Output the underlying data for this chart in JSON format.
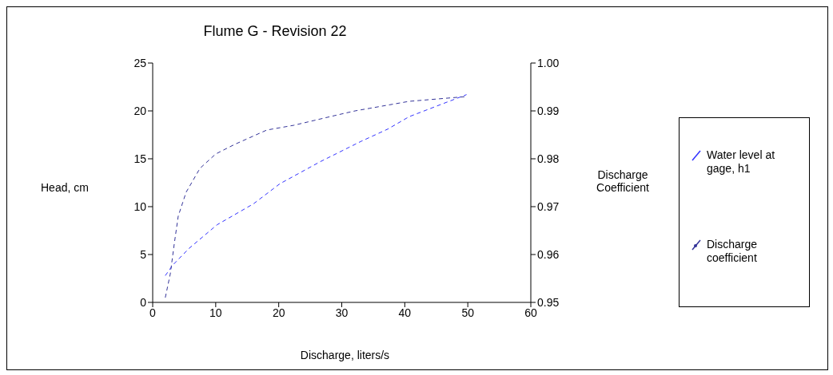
{
  "chart_data": {
    "type": "line",
    "title": "Flume G - Revision 22",
    "xlabel": "Discharge, liters/s",
    "ylabel": "Head, cm",
    "y2label": "Discharge Coefficient",
    "xlim": [
      0,
      60
    ],
    "xticks": [
      0,
      10,
      20,
      30,
      40,
      50,
      60
    ],
    "ylim": [
      0,
      25
    ],
    "yticks": [
      0,
      5,
      10,
      15,
      20,
      25
    ],
    "y2lim": [
      0.95,
      1.0
    ],
    "y2ticks": [
      {
        "value": 0.95,
        "label": "0.95"
      },
      {
        "value": 0.96,
        "label": "0.96"
      },
      {
        "value": 0.97,
        "label": "0.97"
      },
      {
        "value": 0.98,
        "label": "0.98"
      },
      {
        "value": 0.99,
        "label": "0.99"
      },
      {
        "value": 1.0,
        "label": "1.00"
      }
    ],
    "legend": "right",
    "line_style": "dashed",
    "series": [
      {
        "name": "Water level at gage, h1",
        "color": "#3333ff",
        "x": [
          2.0,
          3.2,
          5.7,
          10.2,
          16,
          20.2,
          26.6,
          33,
          37.3,
          40.7,
          49.8
        ],
        "values": [
          2.8,
          3.9,
          5.6,
          8.1,
          10.3,
          12.4,
          14.7,
          16.8,
          18.1,
          19.4,
          21.7
        ]
      },
      {
        "name": "Discharge coefficient",
        "color": "#333399",
        "axis": "y2",
        "x": [
          2.0,
          2.8,
          3.4,
          4.05,
          5.3,
          7.5,
          10,
          13,
          18.1,
          22.4,
          28.8,
          32.1,
          40.7,
          49.8
        ],
        "values": [
          0.951,
          0.956,
          0.962,
          0.968,
          0.973,
          0.978,
          0.981,
          0.983,
          0.986,
          0.987,
          0.989,
          0.99,
          0.992,
          0.993
        ]
      }
    ]
  }
}
